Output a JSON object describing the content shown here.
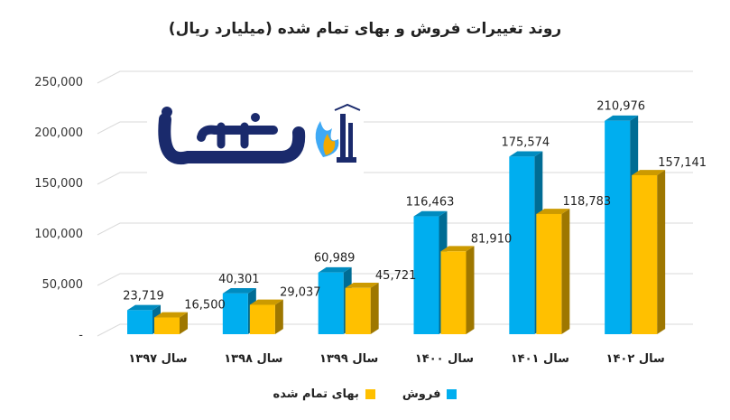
{
  "chart_data": {
    "type": "bar",
    "title": "روند تغییرات فروش و بهای تمام شده (میلیارد ریال)",
    "categories": [
      "سال ۱۳۹۷",
      "سال ۱۳۹۸",
      "سال ۱۳۹۹",
      "سال ۱۴۰۰",
      "سال ۱۴۰۱",
      "سال ۱۴۰۲"
    ],
    "series": [
      {
        "name": "فروش",
        "values": [
          23719,
          40301,
          60989,
          116463,
          175574,
          210976
        ],
        "labels": [
          "23,719",
          "40,301",
          "60,989",
          "116,463",
          "175,574",
          "210,976"
        ],
        "color": "#00aeef"
      },
      {
        "name": "بهای تمام شده",
        "values": [
          16500,
          29037,
          45721,
          81910,
          118783,
          157141
        ],
        "labels": [
          "16,500",
          "29,037",
          "45,721",
          "81,910",
          "118,783",
          "157,141"
        ],
        "color": "#ffc000"
      }
    ],
    "y_ticks": [
      "-",
      "50,000",
      "100,000",
      "150,000",
      "200,000",
      "250,000"
    ],
    "ylim": [
      0,
      250000
    ],
    "grid": true,
    "three_d": true,
    "legend_position": "bottom"
  },
  "logo": {
    "text": "نفسا",
    "colors": [
      "#1a2a6c",
      "#3fa9f5",
      "#f2a900"
    ]
  }
}
